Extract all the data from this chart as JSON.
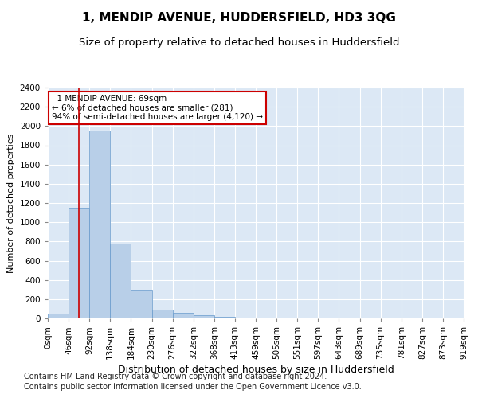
{
  "title": "1, MENDIP AVENUE, HUDDERSFIELD, HD3 3QG",
  "subtitle": "Size of property relative to detached houses in Huddersfield",
  "xlabel": "Distribution of detached houses by size in Huddersfield",
  "ylabel": "Number of detached properties",
  "footnote1": "Contains HM Land Registry data © Crown copyright and database right 2024.",
  "footnote2": "Contains public sector information licensed under the Open Government Licence v3.0.",
  "bin_labels": [
    "0sqm",
    "46sqm",
    "92sqm",
    "138sqm",
    "184sqm",
    "230sqm",
    "276sqm",
    "322sqm",
    "368sqm",
    "413sqm",
    "459sqm",
    "505sqm",
    "551sqm",
    "597sqm",
    "643sqm",
    "689sqm",
    "735sqm",
    "781sqm",
    "827sqm",
    "873sqm",
    "919sqm"
  ],
  "bar_values": [
    50,
    1150,
    1950,
    775,
    295,
    95,
    55,
    30,
    20,
    10,
    10,
    5,
    3,
    2,
    2,
    1,
    1,
    1,
    1,
    1
  ],
  "bar_color": "#b8cfe8",
  "bar_edge_color": "#6699cc",
  "vline_x": 69,
  "vline_color": "#cc0000",
  "annotation_text": "  1 MENDIP AVENUE: 69sqm\n← 6% of detached houses are smaller (281)\n94% of semi-detached houses are larger (4,120) →",
  "annotation_box_color": "white",
  "annotation_box_edge_color": "#cc0000",
  "ylim": [
    0,
    2400
  ],
  "background_color": "#dce8f5",
  "grid_color": "white",
  "title_fontsize": 11,
  "subtitle_fontsize": 9.5,
  "xlabel_fontsize": 9,
  "ylabel_fontsize": 8,
  "tick_fontsize": 7.5,
  "footnote_fontsize": 7,
  "annotation_fontsize": 7.5
}
